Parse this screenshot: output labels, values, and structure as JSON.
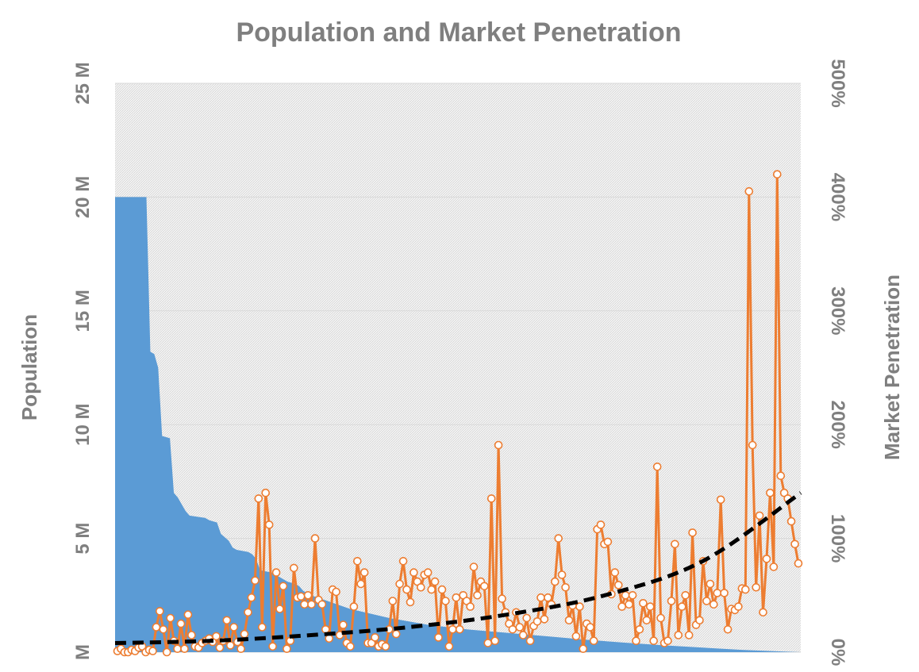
{
  "chart_data": {
    "type": "area",
    "title": "Population and Market Penetration",
    "y_left_label": "Population",
    "y_right_label": "Market Penetration",
    "y_left_ticks": [
      "M",
      "5 M",
      "10 M",
      "15 M",
      "20 M",
      "25 M"
    ],
    "y_right_ticks": [
      "0%",
      "100%",
      "200%",
      "300%",
      "400%",
      "500%"
    ],
    "y_left_range": [
      0,
      25
    ],
    "y_right_range": [
      0,
      500
    ],
    "x_range": [
      0,
      175
    ],
    "grid": true,
    "legend": "none",
    "series": [
      {
        "type": "area",
        "color": "#5b9bd5",
        "points_x": [
          0,
          8,
          9,
          10,
          11,
          12,
          14,
          15,
          16,
          17,
          18,
          19,
          23,
          24,
          25,
          26,
          27,
          29,
          30,
          31,
          34,
          35,
          36,
          37,
          40,
          41,
          42,
          43,
          44,
          46,
          47,
          48,
          50,
          55,
          60,
          65,
          70,
          75,
          80,
          90,
          100,
          110,
          120,
          130,
          140,
          150,
          160,
          170,
          175
        ],
        "values": [
          20.0,
          20.0,
          13.2,
          13.1,
          12.5,
          9.5,
          9.4,
          7.0,
          6.8,
          6.5,
          6.2,
          6.0,
          5.9,
          5.8,
          5.75,
          5.7,
          5.2,
          4.9,
          4.6,
          4.5,
          4.4,
          4.3,
          4.1,
          3.6,
          3.5,
          3.4,
          3.3,
          3.2,
          3.1,
          3.0,
          2.9,
          2.7,
          2.5,
          2.2,
          1.9,
          1.7,
          1.5,
          1.35,
          1.2,
          1.0,
          0.85,
          0.7,
          0.55,
          0.42,
          0.3,
          0.2,
          0.1,
          0.03,
          0.0
        ]
      },
      {
        "type": "line",
        "color": "#ed7d31",
        "values": [
          1,
          3,
          0,
          0,
          2,
          1,
          4,
          5,
          0,
          2,
          1,
          22,
          36,
          20,
          0,
          30,
          10,
          3,
          25,
          3,
          33,
          15,
          5,
          4,
          8,
          10,
          12,
          9,
          14,
          4,
          10,
          28,
          6,
          22,
          9,
          3,
          16,
          35,
          48,
          63,
          135,
          22,
          140,
          112,
          5,
          70,
          38,
          58,
          3,
          10,
          74,
          48,
          49,
          42,
          50,
          42,
          100,
          46,
          42,
          20,
          12,
          55,
          53,
          15,
          24,
          8,
          5,
          40,
          80,
          60,
          70,
          8,
          8,
          13,
          5,
          7,
          5,
          20,
          45,
          16,
          60,
          80,
          55,
          44,
          70,
          62,
          57,
          68,
          70,
          55,
          62,
          13,
          55,
          45,
          5,
          20,
          48,
          20,
          50,
          45,
          40,
          75,
          50,
          62,
          58,
          8,
          135,
          10,
          182,
          47,
          35,
          25,
          20,
          35,
          22,
          15,
          30,
          10,
          23,
          27,
          48,
          29,
          48,
          42,
          62,
          100,
          68,
          57,
          28,
          41,
          14,
          40,
          3,
          25,
          22,
          10,
          108,
          112,
          95,
          97,
          51,
          70,
          59,
          40,
          50,
          42,
          50,
          10,
          20,
          43,
          28,
          40,
          10,
          163,
          30,
          8,
          10,
          45,
          95,
          15,
          40,
          50,
          15,
          105,
          24,
          28,
          80,
          45,
          60,
          42,
          52,
          134,
          52,
          20,
          38,
          37,
          40,
          56,
          55,
          405,
          182,
          57,
          120,
          35,
          82,
          140,
          75,
          420,
          155,
          140,
          135,
          115,
          95,
          78
        ]
      },
      {
        "type": "trendline",
        "color": "#000000",
        "values_at": [
          0,
          25,
          50,
          75,
          100,
          125,
          150,
          175
        ],
        "values": [
          8,
          10,
          15,
          22,
          33,
          50,
          80,
          140
        ]
      }
    ]
  }
}
